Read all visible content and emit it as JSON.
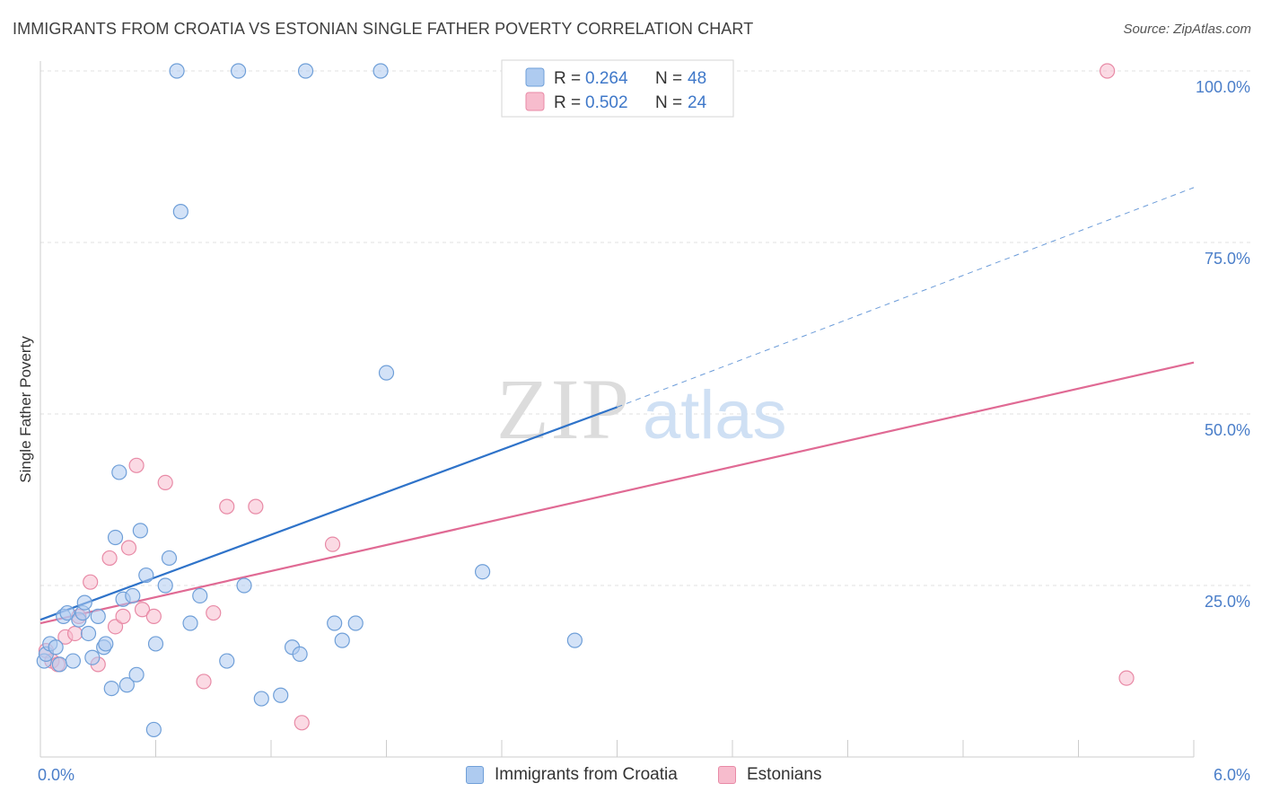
{
  "header": {
    "title": "IMMIGRANTS FROM CROATIA VS ESTONIAN SINGLE FATHER POVERTY CORRELATION CHART",
    "source": "Source: ZipAtlas.com"
  },
  "colors": {
    "blue_fill": "#aecbf0",
    "blue_stroke": "#6f9fd8",
    "blue_line": "#2f73c9",
    "pink_fill": "#f7bccd",
    "pink_stroke": "#e88aa6",
    "pink_line": "#e06a94",
    "axis_label": "#4a7ec9",
    "grid": "#e0e0e0"
  },
  "watermark": {
    "zip": "ZIP",
    "atlas": "atlas"
  },
  "chart_data": {
    "type": "scatter",
    "title": "IMMIGRANTS FROM CROATIA VS ESTONIAN SINGLE FATHER POVERTY CORRELATION CHART",
    "xlabel": "",
    "ylabel": "Single Father Poverty",
    "xlim": [
      0,
      6
    ],
    "ylim": [
      0,
      100
    ],
    "x_tick_labels": [
      "0.0%",
      "6.0%"
    ],
    "y_ticks": [
      25,
      50,
      75,
      100
    ],
    "y_tick_labels": [
      "25.0%",
      "50.0%",
      "75.0%",
      "100.0%"
    ],
    "grid": true,
    "legend_position": "top-center",
    "series": [
      {
        "name": "Immigrants from Croatia",
        "color": "blue",
        "R": "0.264",
        "N": "48",
        "r_label": "R =",
        "n_label": "N =",
        "trend": {
          "x0": 0.0,
          "y0": 20.0,
          "x1": 3.0,
          "y1": 51.0,
          "dash_x1": 6.0,
          "dash_y1": 83.0
        },
        "points": [
          [
            0.02,
            14.0
          ],
          [
            0.03,
            15.0
          ],
          [
            0.05,
            16.5
          ],
          [
            0.08,
            16.0
          ],
          [
            0.1,
            13.5
          ],
          [
            0.12,
            20.5
          ],
          [
            0.14,
            21.0
          ],
          [
            0.17,
            14.0
          ],
          [
            0.2,
            20.0
          ],
          [
            0.22,
            21.0
          ],
          [
            0.23,
            22.5
          ],
          [
            0.25,
            18.0
          ],
          [
            0.27,
            14.5
          ],
          [
            0.3,
            20.5
          ],
          [
            0.33,
            16.0
          ],
          [
            0.34,
            16.5
          ],
          [
            0.37,
            10.0
          ],
          [
            0.39,
            32.0
          ],
          [
            0.41,
            41.5
          ],
          [
            0.43,
            23.0
          ],
          [
            0.45,
            10.5
          ],
          [
            0.48,
            23.5
          ],
          [
            0.5,
            12.0
          ],
          [
            0.52,
            33.0
          ],
          [
            0.55,
            26.5
          ],
          [
            0.59,
            4.0
          ],
          [
            0.6,
            16.5
          ],
          [
            0.65,
            25.0
          ],
          [
            0.67,
            29.0
          ],
          [
            0.71,
            100.0
          ],
          [
            0.73,
            79.5
          ],
          [
            0.78,
            19.5
          ],
          [
            0.83,
            23.5
          ],
          [
            0.97,
            14.0
          ],
          [
            1.03,
            100.0
          ],
          [
            1.06,
            25.0
          ],
          [
            1.15,
            8.5
          ],
          [
            1.25,
            9.0
          ],
          [
            1.31,
            16.0
          ],
          [
            1.35,
            15.0
          ],
          [
            1.38,
            100.0
          ],
          [
            1.53,
            19.5
          ],
          [
            1.57,
            17.0
          ],
          [
            1.64,
            19.5
          ],
          [
            1.77,
            100.0
          ],
          [
            1.8,
            56.0
          ],
          [
            2.3,
            27.0
          ],
          [
            2.78,
            17.0
          ]
        ]
      },
      {
        "name": "Estonians",
        "color": "pink",
        "R": "0.502",
        "N": "24",
        "r_label": "R =",
        "n_label": "N =",
        "trend": {
          "x0": 0.0,
          "y0": 19.5,
          "x1": 6.0,
          "y1": 57.5
        },
        "points": [
          [
            0.03,
            15.5
          ],
          [
            0.06,
            14.0
          ],
          [
            0.09,
            13.5
          ],
          [
            0.13,
            17.5
          ],
          [
            0.18,
            18.0
          ],
          [
            0.2,
            20.5
          ],
          [
            0.26,
            25.5
          ],
          [
            0.3,
            13.5
          ],
          [
            0.36,
            29.0
          ],
          [
            0.39,
            19.0
          ],
          [
            0.43,
            20.5
          ],
          [
            0.46,
            30.5
          ],
          [
            0.5,
            42.5
          ],
          [
            0.53,
            21.5
          ],
          [
            0.59,
            20.5
          ],
          [
            0.65,
            40.0
          ],
          [
            0.85,
            11.0
          ],
          [
            0.9,
            21.0
          ],
          [
            0.97,
            36.5
          ],
          [
            1.12,
            36.5
          ],
          [
            1.36,
            5.0
          ],
          [
            1.52,
            31.0
          ],
          [
            5.55,
            100.0
          ],
          [
            5.65,
            11.5
          ]
        ]
      }
    ]
  }
}
